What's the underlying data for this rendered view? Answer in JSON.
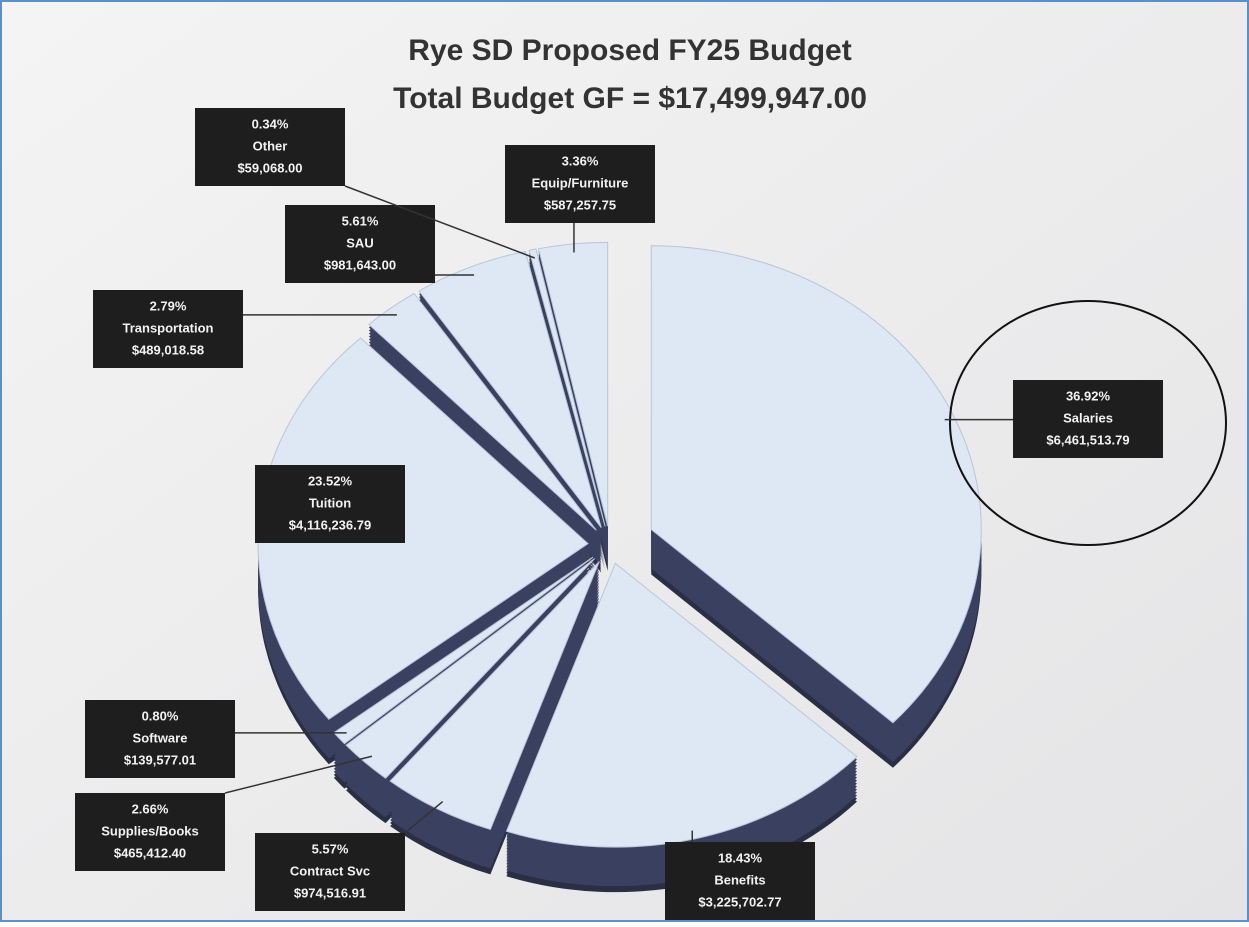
{
  "chart_data": {
    "type": "pie",
    "title": "Rye SD Proposed FY25 Budget",
    "subtitle": "Total Budget GF = $17,499,947.00",
    "categories": [
      "Salaries",
      "Benefits",
      "Contract Svc",
      "Supplies/Books",
      "Software",
      "Tuition",
      "Transportation",
      "SAU",
      "Other",
      "Equip/Furniture"
    ],
    "values": [
      36.92,
      18.43,
      5.57,
      2.66,
      0.8,
      23.52,
      2.79,
      5.61,
      0.34,
      3.36
    ],
    "value_labels": [
      "36.92%",
      "18.43%",
      "5.57%",
      "2.66%",
      "0.80%",
      "23.52%",
      "2.79%",
      "5.61%",
      "0.34%",
      "3.36%"
    ],
    "amounts": [
      6461513.79,
      3225702.77,
      974516.91,
      465412.4,
      139577.01,
      4116236.79,
      489018.58,
      981643.0,
      59068.0,
      587257.75
    ],
    "amount_labels": [
      "$6,461,513.79",
      "$3,225,702.77",
      "$974,516.91",
      "$465,412.40",
      "$139,577.01",
      "$4,116,236.79",
      "$489,018.58",
      "$981,643.00",
      "$59,068.00",
      "$587,257.75"
    ],
    "color": "#dde8f4"
  }
}
